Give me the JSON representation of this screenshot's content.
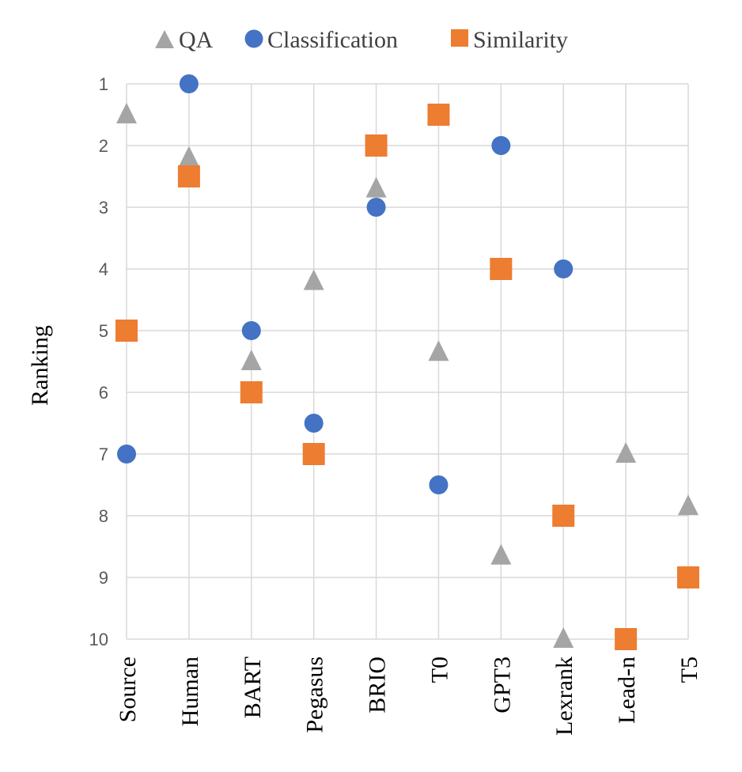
{
  "chart_data": {
    "type": "scatter",
    "title": "",
    "xlabel": "",
    "ylabel": "Ranking",
    "categories": [
      "Source",
      "Human",
      "BART",
      "Pegasus",
      "BRIO",
      "T0",
      "GPT3",
      "Lexrank",
      "Lead-n",
      "T5"
    ],
    "ylim": [
      1,
      10
    ],
    "y_inverted": true,
    "yticks": [
      1,
      2,
      3,
      4,
      5,
      6,
      7,
      8,
      9,
      10
    ],
    "grid": true,
    "legend_position": "top",
    "series": [
      {
        "name": "QA",
        "marker": "triangle",
        "color": "#a5a5a5",
        "values": [
          1.5,
          2.2,
          5.5,
          4.2,
          2.7,
          5.35,
          8.65,
          10,
          7,
          7.85
        ]
      },
      {
        "name": "Classification",
        "marker": "circle",
        "color": "#4472c4",
        "values": [
          7,
          1,
          5,
          6.5,
          3,
          7.5,
          2,
          4,
          null,
          null
        ]
      },
      {
        "name": "Similarity",
        "marker": "square",
        "color": "#ed7d31",
        "values": [
          5,
          2.5,
          6,
          7,
          2,
          1.5,
          4,
          8,
          10,
          9
        ]
      }
    ]
  }
}
